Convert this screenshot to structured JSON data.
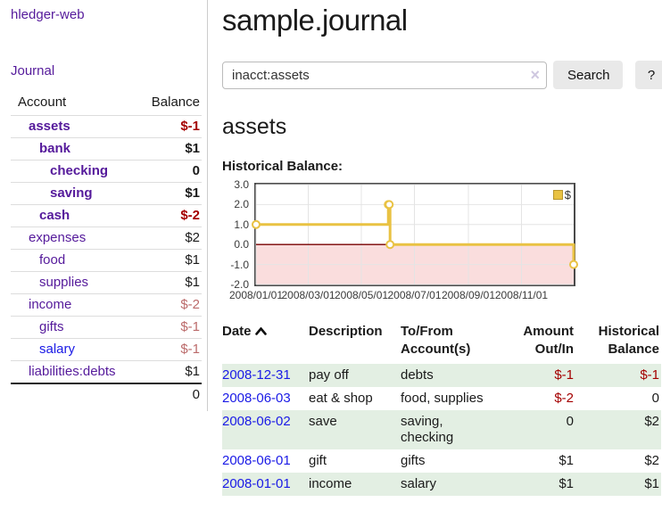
{
  "app": {
    "title": "hledger-web"
  },
  "colors": {
    "link_purple": "#551a9b",
    "link_blue": "#1a1ae6",
    "negative_strong": "#a40000",
    "negative_soft": "#bb6a6a",
    "row_green": "#e3efe3",
    "series_gold": "#e9c243",
    "negative_region_pink": "#fadddd",
    "zero_line_red": "#780000"
  },
  "sidebar": {
    "nav_journal": "Journal",
    "accounts": {
      "headers": {
        "account": "Account",
        "balance": "Balance"
      },
      "rows": [
        {
          "name": "assets",
          "balance": "$-1",
          "indent": 1,
          "bold": true
        },
        {
          "name": "bank",
          "balance": "$1",
          "indent": 2,
          "bold": true
        },
        {
          "name": "checking",
          "balance": "0",
          "indent": 3,
          "bold": true
        },
        {
          "name": "saving",
          "balance": "$1",
          "indent": 3,
          "bold": true
        },
        {
          "name": "cash",
          "balance": "$-2",
          "indent": 2,
          "bold": true
        },
        {
          "name": "expenses",
          "balance": "$2",
          "indent": 1,
          "bold": false
        },
        {
          "name": "food",
          "balance": "$1",
          "indent": 2,
          "bold": false
        },
        {
          "name": "supplies",
          "balance": "$1",
          "indent": 2,
          "bold": false
        },
        {
          "name": "income",
          "balance": "$-2",
          "indent": 1,
          "bold": false
        },
        {
          "name": "gifts",
          "balance": "$-1",
          "indent": 2,
          "bold": false
        },
        {
          "name": "salary",
          "balance": "$-1",
          "indent": 2,
          "bold": false
        },
        {
          "name": "liabilities:debts",
          "balance": "$1",
          "indent": 1,
          "bold": false
        }
      ],
      "total": "0"
    }
  },
  "header": {
    "title": "sample.journal"
  },
  "search": {
    "value": "inacct:assets",
    "clear_icon": "×",
    "button_label": "Search",
    "help_label": "?"
  },
  "main": {
    "heading": "assets",
    "chart_label": "Historical Balance:"
  },
  "chart_data": {
    "type": "line",
    "step": true,
    "title": "Historical Balance:",
    "series": [
      {
        "name": "$",
        "color": "#e9c243",
        "points": [
          {
            "date": "2008-01-01",
            "value": 1
          },
          {
            "date": "2008-06-01",
            "value": 2
          },
          {
            "date": "2008-06-02",
            "value": 2
          },
          {
            "date": "2008-06-03",
            "value": 0
          },
          {
            "date": "2008-12-31",
            "value": -1
          }
        ]
      }
    ],
    "x_domain": [
      "2008-01-01",
      "2008-12-31"
    ],
    "x_ticks": [
      "2008/01/01",
      "2008/03/01",
      "2008/05/01",
      "2008/07/01",
      "2008/09/01",
      "2008/11/01"
    ],
    "x_tick_dates": [
      "2008-01-01",
      "2008-03-01",
      "2008-05-01",
      "2008-07-01",
      "2008-09-01",
      "2008-11-01"
    ],
    "y_ticks": [
      3.0,
      2.0,
      1.0,
      0.0,
      -1.0,
      -2.0
    ],
    "ylim": [
      -2,
      3
    ],
    "grid": true,
    "negative_region_color": "#fadddd",
    "zero_line_color": "#780000",
    "legend": {
      "label": "$",
      "position": "top-right"
    }
  },
  "register": {
    "headers": {
      "date": "Date",
      "description": "Description",
      "to_from_1": "To/From",
      "to_from_2": "Account(s)",
      "amount_1": "Amount",
      "amount_2": "Out/In",
      "historical_1": "Historical",
      "historical_2": "Balance"
    },
    "rows": [
      {
        "date": "2008-12-31",
        "description": "pay off",
        "accounts": "debts",
        "amount": "$-1",
        "balance": "$-1"
      },
      {
        "date": "2008-06-03",
        "description": "eat & shop",
        "accounts": "food, supplies",
        "amount": "$-2",
        "balance": "0"
      },
      {
        "date": "2008-06-02",
        "description": "save",
        "accounts": "saving, checking",
        "amount": "0",
        "balance": "$2"
      },
      {
        "date": "2008-06-01",
        "description": "gift",
        "accounts": "gifts",
        "amount": "$1",
        "balance": "$2"
      },
      {
        "date": "2008-01-01",
        "description": "income",
        "accounts": "salary",
        "amount": "$1",
        "balance": "$1"
      }
    ]
  }
}
